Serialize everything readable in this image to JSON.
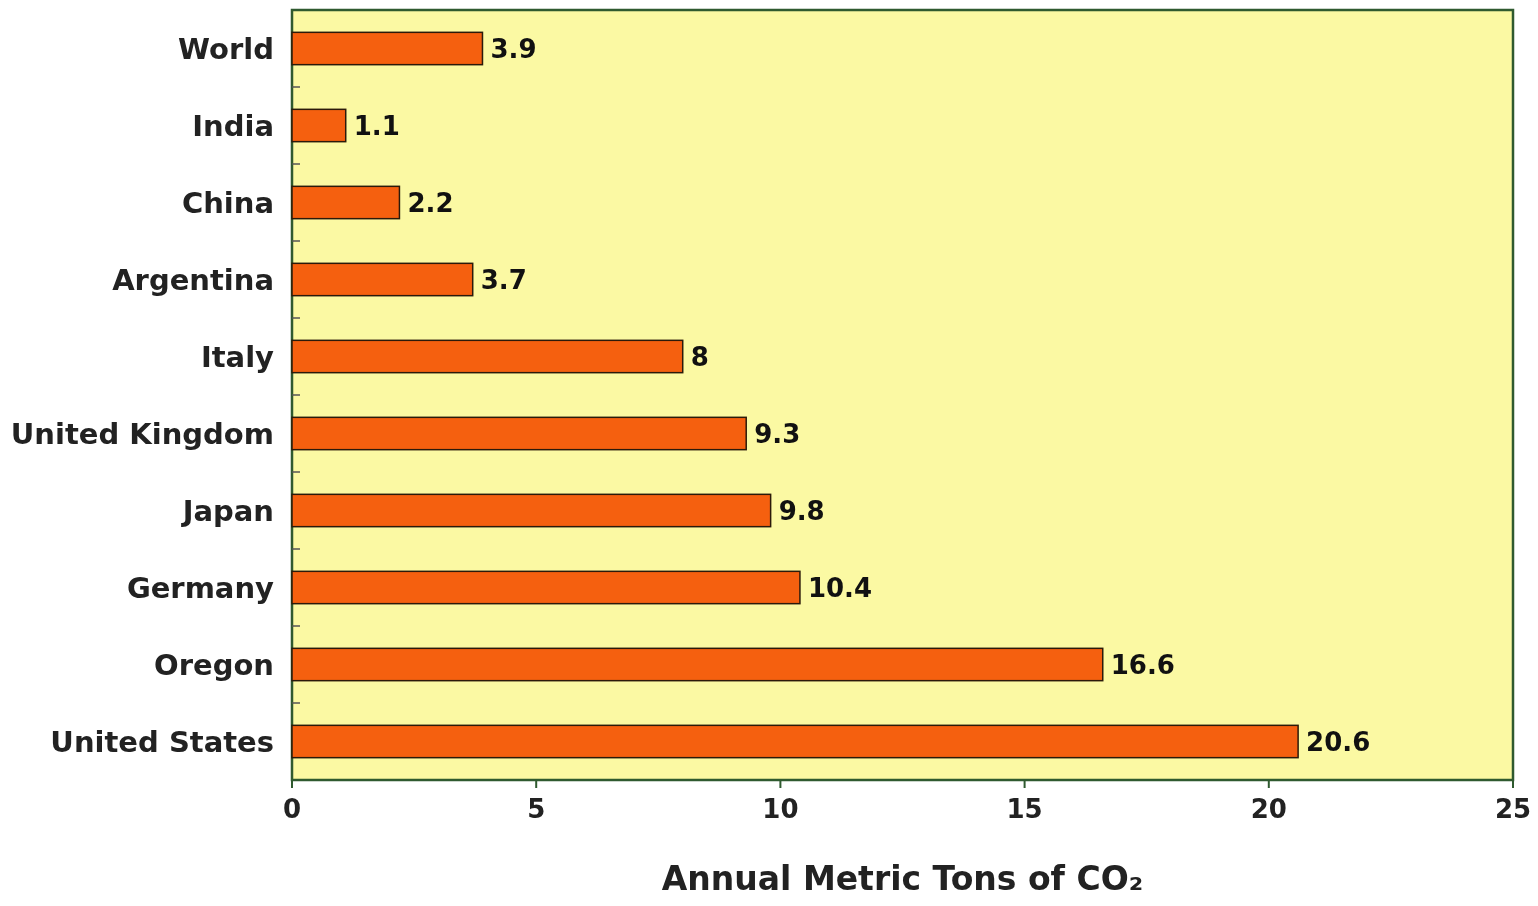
{
  "chart_data": {
    "type": "bar",
    "orientation": "horizontal",
    "xlabel": "Annual Metric Tons of CO₂",
    "categories": [
      "World",
      "India",
      "China",
      "Argentina",
      "Italy",
      "United Kingdom",
      "Japan",
      "Germany",
      "Oregon",
      "United States"
    ],
    "values": [
      3.9,
      1.1,
      2.2,
      3.7,
      8,
      9.3,
      9.8,
      10.4,
      16.6,
      20.6
    ],
    "color": "#f5600f",
    "xlim": [
      0,
      25
    ],
    "xticks": [
      0,
      5,
      10,
      15,
      20,
      25
    ],
    "data_labels": true,
    "grid": false
  }
}
